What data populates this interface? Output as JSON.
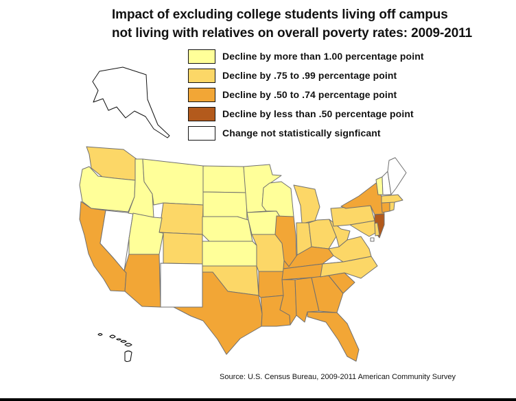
{
  "title": {
    "line1": "Impact of excluding college students living off campus",
    "line2": "not living with relatives on overall poverty rates: 2009-2011"
  },
  "legend": [
    {
      "label": "Decline by more than 1.00 percentage point",
      "color": "#FFFF99"
    },
    {
      "label": "Decline by .75 to .99 percentage point",
      "color": "#FCD767"
    },
    {
      "label": "Decline by .50 to .74 percentage point",
      "color": "#F2A636"
    },
    {
      "label": "Decline by less than .50 percentage point",
      "color": "#B35A1C"
    },
    {
      "label": "Change not statistically signficant",
      "color": "#FFFFFF"
    }
  ],
  "source": "Source:  U.S.  Census Bureau, 2009-2011 American Community Survey",
  "map_data": {
    "Alaska": "Change not statistically signficant",
    "Hawaii": "Change not statistically signficant",
    "Washington": "Decline by .75 to .99 percentage point",
    "Oregon": "Decline by more than 1.00 percentage point",
    "California": "Decline by .50 to .74 percentage point",
    "Nevada": "Change not statistically signficant",
    "Idaho": "Decline by more than 1.00 percentage point",
    "Montana": "Decline by more than 1.00 percentage point",
    "Wyoming": "Decline by .75 to .99 percentage point",
    "Utah": "Decline by more than 1.00 percentage point",
    "Arizona": "Decline by .50 to .74 percentage point",
    "Colorado": "Decline by .75 to .99 percentage point",
    "New Mexico": "Change not statistically signficant",
    "North Dakota": "Decline by more than 1.00 percentage point",
    "South Dakota": "Decline by more than 1.00 percentage point",
    "Nebraska": "Decline by more than 1.00 percentage point",
    "Kansas": "Decline by more than 1.00 percentage point",
    "Oklahoma": "Decline by .75 to .99 percentage point",
    "Texas": "Decline by .50 to .74 percentage point",
    "Minnesota": "Decline by more than 1.00 percentage point",
    "Iowa": "Decline by more than 1.00 percentage point",
    "Missouri": "Decline by .75 to .99 percentage point",
    "Arkansas": "Decline by .50 to .74 percentage point",
    "Louisiana": "Decline by .50 to .74 percentage point",
    "Wisconsin": "Decline by more than 1.00 percentage point",
    "Illinois": "Decline by .50 to .74 percentage point",
    "Michigan": "Decline by .75 to .99 percentage point",
    "Indiana": "Decline by .75 to .99 percentage point",
    "Ohio": "Decline by .75 to .99 percentage point",
    "Kentucky": "Decline by .50 to .74 percentage point",
    "Tennessee": "Decline by .50 to .74 percentage point",
    "Mississippi": "Decline by .50 to .74 percentage point",
    "Alabama": "Decline by .50 to .74 percentage point",
    "Georgia": "Decline by .50 to .74 percentage point",
    "Florida": "Decline by .50 to .74 percentage point",
    "South Carolina": "Decline by .50 to .74 percentage point",
    "North Carolina": "Decline by .75 to .99 percentage point",
    "Virginia": "Decline by .75 to .99 percentage point",
    "West Virginia": "Decline by .75 to .99 percentage point",
    "Pennsylvania": "Decline by .75 to .99 percentage point",
    "New York": "Decline by .50 to .74 percentage point",
    "New Jersey": "Decline by less than .50 percentage point",
    "Maryland": "Decline by .75 to .99 percentage point",
    "Delaware": "Decline by .75 to .99 percentage point",
    "Connecticut": "Decline by .50 to .74 percentage point",
    "Rhode Island": "Decline by .75 to .99 percentage point",
    "Massachusetts": "Decline by .75 to .99 percentage point",
    "Vermont": "Decline by more than 1.00 percentage point",
    "New Hampshire": "Change not statistically signficant",
    "Maine": "Change not statistically signficant",
    "District of Columbia": "Change not statistically signficant"
  }
}
